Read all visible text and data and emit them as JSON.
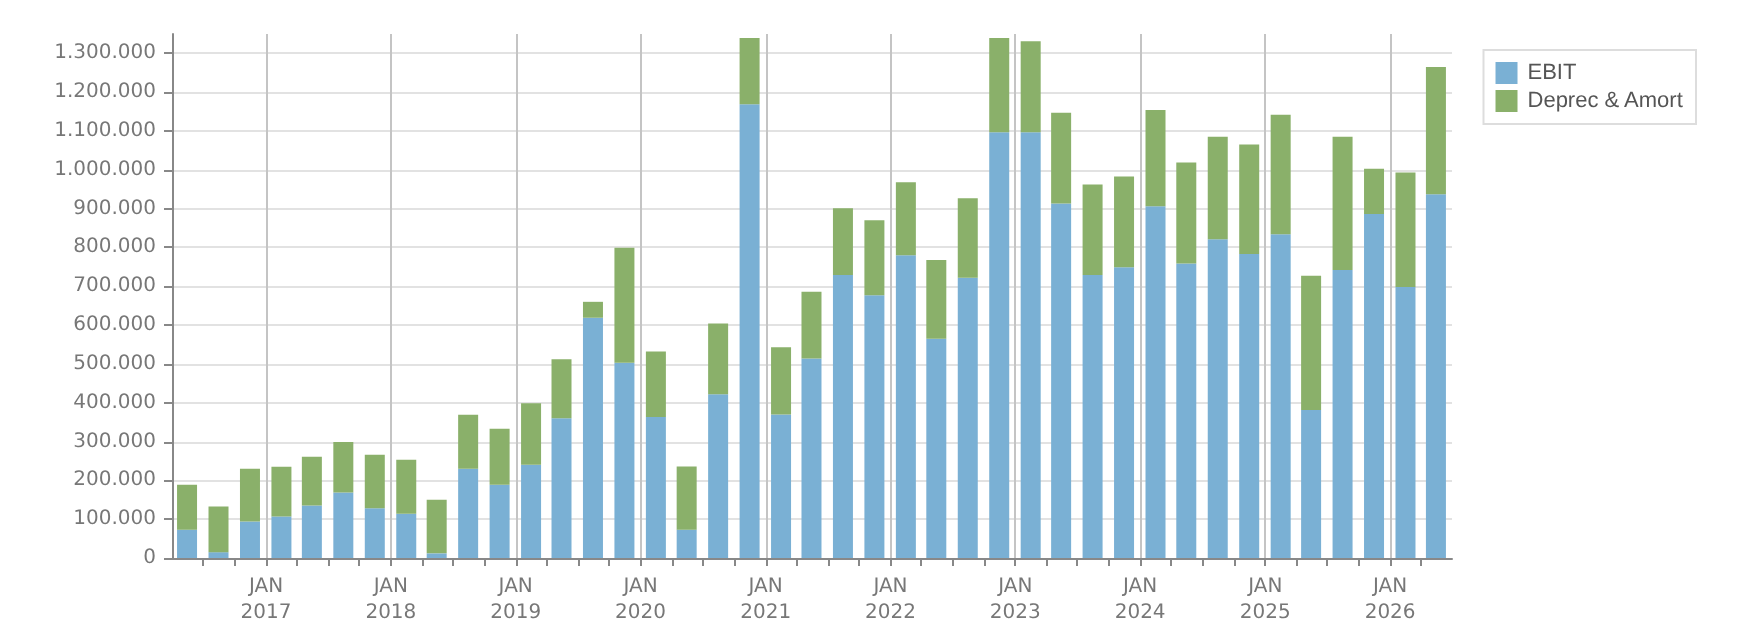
{
  "chart_data": {
    "type": "bar",
    "stacked": true,
    "x": [
      "2016-05-15",
      "2016-08-15",
      "2016-11-15",
      "2017-02-15",
      "2017-05-15",
      "2017-08-15",
      "2017-11-15",
      "2018-02-15",
      "2018-05-15",
      "2018-08-15",
      "2018-11-15",
      "2019-02-15",
      "2019-05-15",
      "2019-08-15",
      "2019-11-15",
      "2020-02-15",
      "2020-05-15",
      "2020-08-15",
      "2020-11-15",
      "2021-02-15",
      "2021-05-15",
      "2021-08-15",
      "2021-11-15",
      "2022-02-15",
      "2022-05-15",
      "2022-08-15",
      "2022-11-15",
      "2023-02-15",
      "2023-05-15",
      "2023-08-15",
      "2023-11-15",
      "2024-02-15",
      "2024-05-15",
      "2024-08-15",
      "2024-11-15",
      "2025-02-15",
      "2025-05-15",
      "2025-08-15",
      "2025-11-15",
      "2026-02-15",
      "2026-05-15"
    ],
    "series": [
      {
        "name": "EBIT",
        "color": "#7ab0d4",
        "values": [
          73000,
          15000,
          94000,
          107000,
          135000,
          169000,
          128000,
          114000,
          12000,
          230000,
          189000,
          240000,
          360000,
          619000,
          503000,
          363000,
          73000,
          422000,
          1169000,
          370000,
          514000,
          729000,
          677000,
          780000,
          565000,
          722000,
          1097000,
          1097000,
          913000,
          729000,
          749000,
          906000,
          759000,
          821000,
          783000,
          834000,
          381000,
          742000,
          886000,
          698000,
          937000
        ]
      },
      {
        "name": "Deprec & Amort",
        "color": "#8ab06a",
        "values": [
          116000,
          118000,
          136000,
          128000,
          126000,
          130000,
          138000,
          139000,
          138000,
          139000,
          144000,
          159000,
          152000,
          41000,
          296000,
          169000,
          163000,
          182000,
          171000,
          173000,
          172000,
          172000,
          193000,
          188000,
          203000,
          205000,
          243000,
          234000,
          234000,
          233000,
          234000,
          248000,
          260000,
          264000,
          282000,
          308000,
          346000,
          343000,
          117000,
          295000,
          328000
        ]
      }
    ],
    "xlim": [
      "2016-04-01",
      "2026-07-01"
    ],
    "xticks": [
      {
        "value": "2016-07-01",
        "label": null
      },
      {
        "value": "2016-10-01",
        "label": null
      },
      {
        "value": "2017-01-01",
        "label": "JAN\n2017"
      },
      {
        "value": "2017-04-01",
        "label": null
      },
      {
        "value": "2017-07-01",
        "label": null
      },
      {
        "value": "2017-10-01",
        "label": null
      },
      {
        "value": "2018-01-01",
        "label": "JAN\n2018"
      },
      {
        "value": "2018-04-01",
        "label": null
      },
      {
        "value": "2018-07-01",
        "label": null
      },
      {
        "value": "2018-10-01",
        "label": null
      },
      {
        "value": "2019-01-01",
        "label": "JAN\n2019"
      },
      {
        "value": "2019-04-01",
        "label": null
      },
      {
        "value": "2019-07-01",
        "label": null
      },
      {
        "value": "2019-10-01",
        "label": null
      },
      {
        "value": "2020-01-01",
        "label": "JAN\n2020"
      },
      {
        "value": "2020-04-01",
        "label": null
      },
      {
        "value": "2020-07-01",
        "label": null
      },
      {
        "value": "2020-10-01",
        "label": null
      },
      {
        "value": "2021-01-01",
        "label": "JAN\n2021"
      },
      {
        "value": "2021-04-01",
        "label": null
      },
      {
        "value": "2021-07-01",
        "label": null
      },
      {
        "value": "2021-10-01",
        "label": null
      },
      {
        "value": "2022-01-01",
        "label": "JAN\n2022"
      },
      {
        "value": "2022-04-01",
        "label": null
      },
      {
        "value": "2022-07-01",
        "label": null
      },
      {
        "value": "2022-10-01",
        "label": null
      },
      {
        "value": "2023-01-01",
        "label": "JAN\n2023"
      },
      {
        "value": "2023-04-01",
        "label": null
      },
      {
        "value": "2023-07-01",
        "label": null
      },
      {
        "value": "2023-10-01",
        "label": null
      },
      {
        "value": "2024-01-01",
        "label": "JAN\n2024"
      },
      {
        "value": "2024-04-01",
        "label": null
      },
      {
        "value": "2024-07-01",
        "label": null
      },
      {
        "value": "2024-10-01",
        "label": null
      },
      {
        "value": "2025-01-01",
        "label": "JAN\n2025"
      },
      {
        "value": "2025-04-01",
        "label": null
      },
      {
        "value": "2025-07-01",
        "label": null
      },
      {
        "value": "2025-10-01",
        "label": null
      },
      {
        "value": "2026-01-01",
        "label": "JAN\n2026"
      },
      {
        "value": "2026-04-01",
        "label": null
      }
    ],
    "ylim": [
      0,
      1350000
    ],
    "yticks": [
      0,
      {
        "value": 100000,
        "label": "100.000"
      },
      {
        "value": 200000,
        "label": "200.000"
      },
      {
        "value": 300000,
        "label": "300.000"
      },
      {
        "value": 400000,
        "label": "400.000"
      },
      {
        "value": 500000,
        "label": "500.000"
      },
      {
        "value": 600000,
        "label": "600.000"
      },
      {
        "value": 700000,
        "label": "700.000"
      },
      {
        "value": 800000,
        "label": "800.000"
      },
      {
        "value": 900000,
        "label": "900.000"
      },
      {
        "value": 1000000,
        "label": "1.000.000"
      },
      {
        "value": 1100000,
        "label": "1.100.000"
      },
      {
        "value": 1200000,
        "label": "1.200.000"
      },
      {
        "value": 1300000,
        "label": "1.300.000"
      }
    ],
    "grid": true,
    "legend": "top right"
  }
}
